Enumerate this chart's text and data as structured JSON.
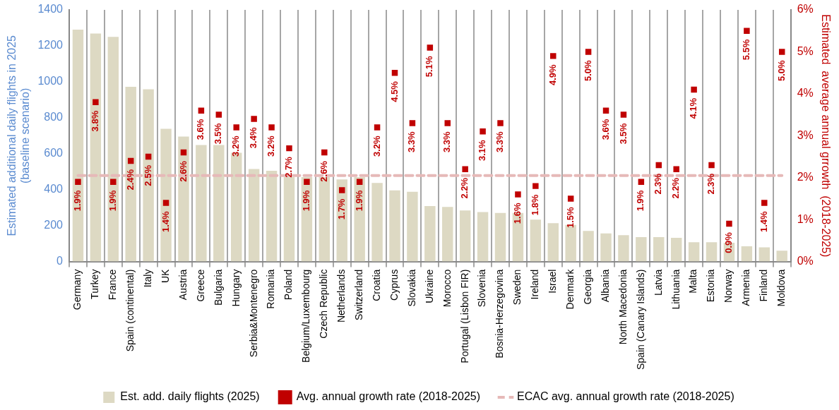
{
  "chart_data": {
    "type": "bar",
    "categories": [
      "Germany",
      "Turkey",
      "France",
      "Spain (continental)",
      "Italy",
      "UK",
      "Austria",
      "Greece",
      "Bulgaria",
      "Hungary",
      "Serbia&Montenegro",
      "Romania",
      "Poland",
      "Belgium/Luxembourg",
      "Czech Republic",
      "Netherlands",
      "Switzerland",
      "Croatia",
      "Cyprus",
      "Slovakia",
      "Ukraine",
      "Morocco",
      "Portugal (Lisbon FIR)",
      "Slovenia",
      "Bosnia-Herzegovina",
      "Sweden",
      "Ireland",
      "Israel",
      "Denmark",
      "Georgia",
      "Albania",
      "North Macedonia",
      "Spain (Canary Islands)",
      "Latvia",
      "Lithuania",
      "Malta",
      "Estonia",
      "Norway",
      "Armenia",
      "Finland",
      "Moldova"
    ],
    "series": [
      {
        "name": "Est. add. daily flights (2025)",
        "color": "#ddd9c3",
        "values": [
          1290,
          1268,
          1250,
          972,
          958,
          738,
          695,
          648,
          648,
          605,
          515,
          505,
          470,
          470,
          470,
          457,
          470,
          437,
          396,
          388,
          309,
          304,
          284,
          275,
          270,
          270,
          233,
          213,
          204,
          170,
          156,
          147,
          136,
          136,
          132,
          107,
          107,
          104,
          85,
          79,
          60
        ]
      },
      {
        "name": "Avg. annual growth rate (2018-2025)",
        "type": "scatter",
        "axis": "y2",
        "marker": "square",
        "color": "#c00000",
        "values": [
          1.9,
          3.8,
          1.9,
          2.4,
          2.5,
          1.4,
          2.6,
          3.6,
          3.5,
          3.2,
          3.4,
          3.2,
          2.7,
          1.9,
          2.6,
          1.7,
          1.9,
          3.2,
          4.5,
          3.3,
          5.1,
          3.3,
          2.2,
          3.1,
          3.3,
          1.6,
          1.8,
          4.9,
          1.5,
          5.0,
          3.6,
          3.5,
          1.9,
          2.3,
          2.2,
          4.1,
          2.3,
          0.9,
          5.5,
          1.4,
          5.0
        ],
        "value_labels": [
          "1.9%",
          "3.8%",
          "1.9%",
          "2.4%",
          "2.5%",
          "1.4%",
          "2.6%",
          "3.6%",
          "3.5%",
          "3.2%",
          "3.4%",
          "3.2%",
          "2.7%",
          "1.9%",
          "2.6%",
          "1.7%",
          "1.9%",
          "3.2%",
          "4.5%",
          "3.3%",
          "5.1%",
          "3.3%",
          "2.2%",
          "3.1%",
          "3.3%",
          "1.6%",
          "1.8%",
          "4.9%",
          "1.5%",
          "5.0%",
          "3.6%",
          "3.5%",
          "1.9%",
          "2.3%",
          "2.2%",
          "4.1%",
          "2.3%",
          "0.9%",
          "5.5%",
          "1.4%",
          "5.0%"
        ]
      },
      {
        "name": "ECAC avg. annual growth rate (2018-2025)",
        "type": "line",
        "axis": "y2",
        "marker": "none",
        "line_style": "dashed",
        "color": "#e6b9b8",
        "values": [
          2.05,
          2.05,
          2.05,
          2.05,
          2.05,
          2.05,
          2.05,
          2.05,
          2.05,
          2.05,
          2.05,
          2.05,
          2.05,
          2.05,
          2.05,
          2.05,
          2.05,
          2.05,
          2.05,
          2.05,
          2.05,
          2.05,
          2.05,
          2.05,
          2.05,
          2.05,
          2.05,
          2.05,
          2.05,
          2.05,
          2.05,
          2.05,
          2.05,
          2.05,
          2.05,
          2.05,
          2.05,
          2.05,
          2.05,
          2.05,
          2.05
        ]
      }
    ],
    "ylabel": "Estimated additional daily flights in 2025\n(baseline scenario)",
    "y2label": "Estimated  average annual grrowth  (2018-2025)",
    "ylim": [
      0,
      1400
    ],
    "yticks": [
      0,
      200,
      400,
      600,
      800,
      1000,
      1200,
      1400
    ],
    "y2lim": [
      0,
      6
    ],
    "y2ticks": [
      {
        "value": 0,
        "label": "0%"
      },
      {
        "value": 1,
        "label": "1%"
      },
      {
        "value": 2,
        "label": "2%"
      },
      {
        "value": 3,
        "label": "3%"
      },
      {
        "value": 4,
        "label": "4%"
      },
      {
        "value": 5,
        "label": "5%"
      },
      {
        "value": 6,
        "label": "6%"
      }
    ],
    "grid": "x",
    "legend": "bottom"
  }
}
